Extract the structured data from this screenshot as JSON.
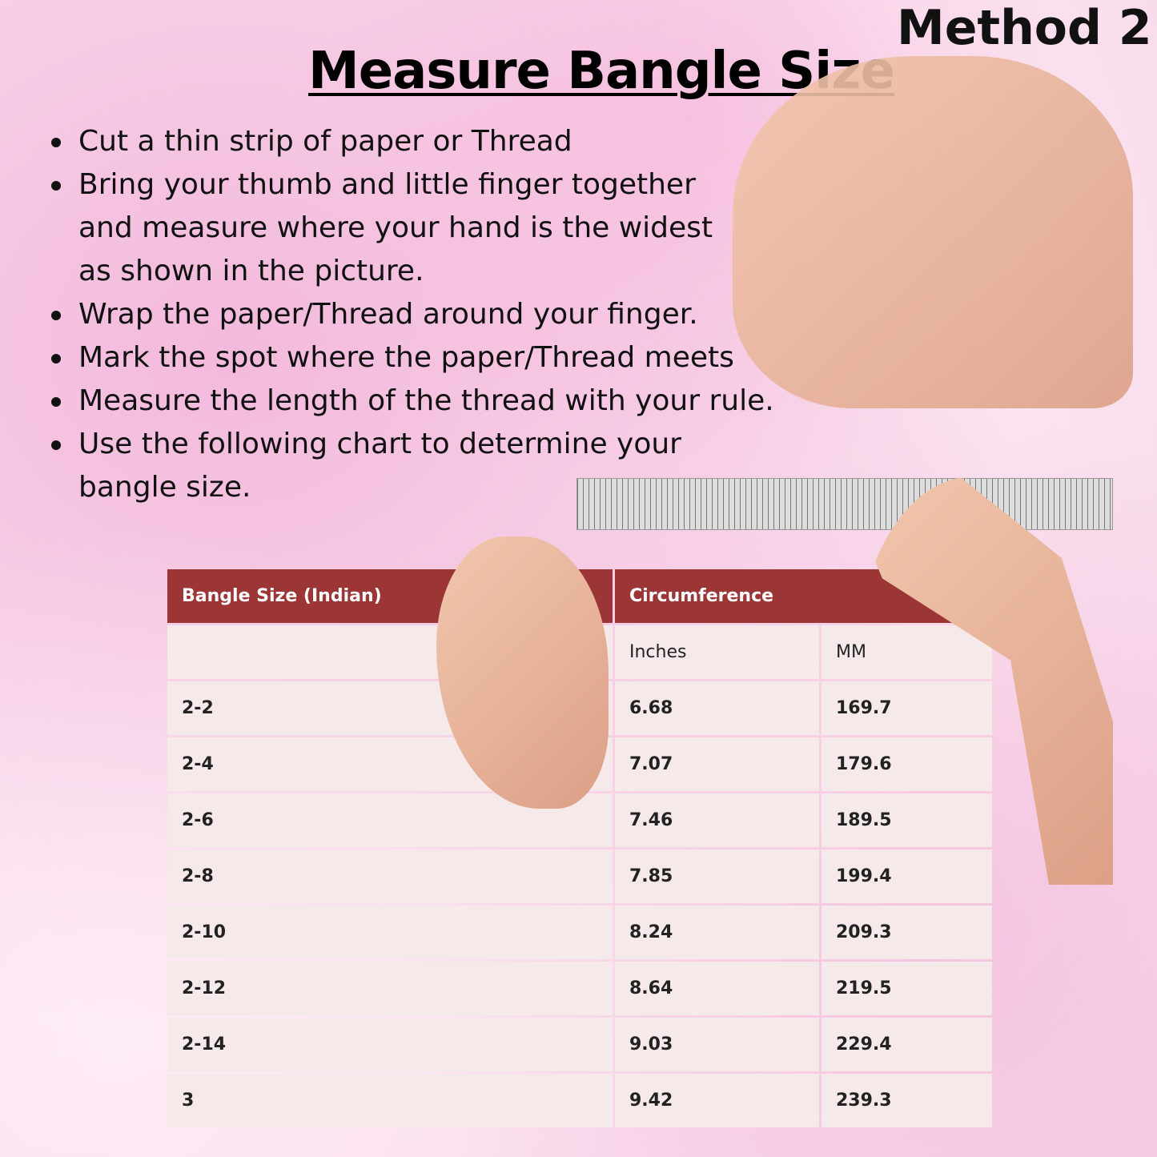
{
  "method": "Method 2",
  "title": "Measure Bangle Size",
  "bullets": [
    "Cut a thin strip of paper or Thread",
    "Bring your thumb and little finger together and measure where your hand is the widest as shown in the picture.",
    "Wrap the paper/Thread around your finger.",
    "Mark the spot where the paper/Thread meets",
    "Measure the length of the thread with your rule.",
    "Use the following chart to determine your bangle size."
  ],
  "table": {
    "headers": [
      "Bangle Size (Indian)",
      "Circumference"
    ],
    "subheaders": [
      "",
      "Inches",
      "MM"
    ],
    "rows": [
      [
        "2-2",
        "6.68",
        "169.7"
      ],
      [
        "2-4",
        "7.07",
        "179.6"
      ],
      [
        "2-6",
        "7.46",
        "189.5"
      ],
      [
        "2-8",
        "7.85",
        "199.4"
      ],
      [
        "2-10",
        "8.24",
        "209.3"
      ],
      [
        "2-12",
        "8.64",
        "219.5"
      ],
      [
        "2-14",
        "9.03",
        "229.4"
      ],
      [
        "3",
        "9.42",
        "239.3"
      ]
    ]
  },
  "colors": {
    "header": "#9c3535",
    "cell": "#f5e9e9"
  }
}
